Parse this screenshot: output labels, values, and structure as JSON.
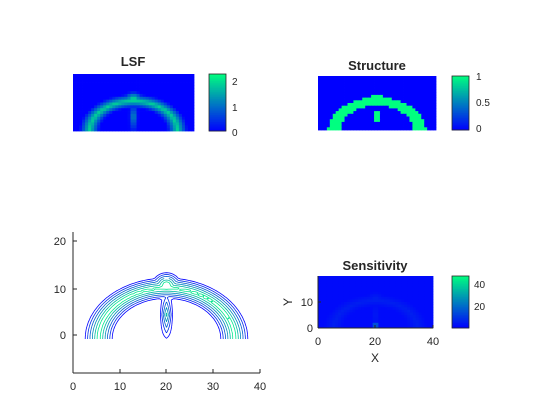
{
  "figure": {
    "background": "#ffffff",
    "colormap": "winter"
  },
  "chart_data": [
    {
      "id": "lsf",
      "type": "heatmap",
      "title": "LSF",
      "axes_visible": false,
      "grid_size": [
        40,
        20
      ],
      "colorbar": {
        "ticks": [
          "0",
          "1",
          "2"
        ],
        "range": [
          0,
          2.4
        ]
      },
      "description_values": {
        "min": 0,
        "max": 2.4
      }
    },
    {
      "id": "structure",
      "type": "heatmap",
      "title": "Structure",
      "axes_visible": false,
      "grid_size": [
        40,
        20
      ],
      "colorbar": {
        "ticks": [
          "0",
          "0.5",
          "1"
        ],
        "range": [
          0,
          1
        ]
      }
    },
    {
      "id": "contour",
      "type": "line",
      "title": "",
      "xlabel": "",
      "ylabel": "",
      "xlim": [
        0,
        40
      ],
      "ylim": [
        -7,
        22
      ],
      "xticks": [
        "0",
        "10",
        "20",
        "30",
        "40"
      ],
      "yticks": [
        "0",
        "10",
        "20"
      ],
      "levels": [
        0.3,
        0.6,
        0.9,
        1.2,
        1.5,
        1.8
      ]
    },
    {
      "id": "sensitivity",
      "type": "heatmap",
      "title": "Sensitivity",
      "xlabel": "X",
      "ylabel": "Y",
      "xlim": [
        0,
        40
      ],
      "ylim": [
        0,
        20
      ],
      "xticks": [
        "0",
        "20",
        "40"
      ],
      "yticks": [
        "0",
        "10"
      ],
      "colorbar": {
        "ticks": [
          "20",
          "40"
        ],
        "range": [
          3,
          46
        ]
      }
    }
  ]
}
